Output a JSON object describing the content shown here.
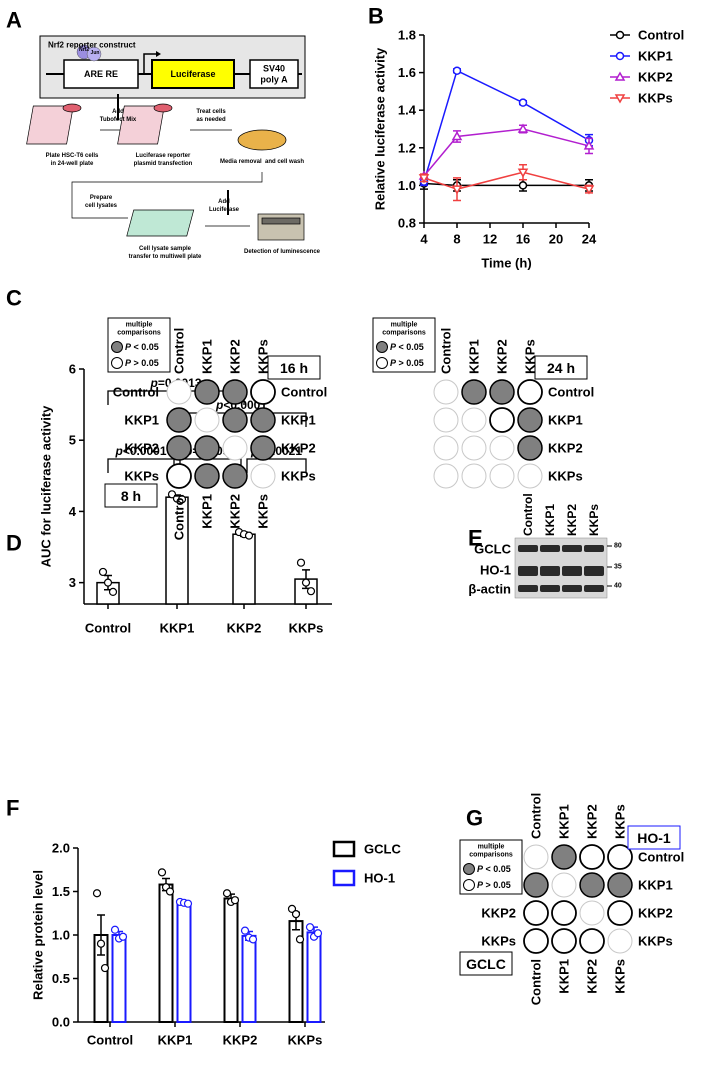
{
  "panel_labels": [
    "A",
    "B",
    "C",
    "D",
    "E",
    "F",
    "G"
  ],
  "construct": {
    "title": "Nrf2 reporter construct",
    "factors": [
      "Nrf2",
      "Jun"
    ],
    "elements": [
      [
        "ARE RE"
      ],
      [
        "Luciferase"
      ],
      [
        "SV40",
        "poly A"
      ]
    ]
  },
  "steps": [
    [
      "Plate HSC-T6 cells",
      "in 24-well plate"
    ],
    [
      "Add",
      "Tubofect Mix"
    ],
    [
      "Luciferase reporter",
      "plasmid transfection"
    ],
    [
      "Treat cells",
      "as needed"
    ],
    [
      "Media removal  and cell wash"
    ],
    [
      "Prepare",
      "cell lysates"
    ],
    [
      "Cell lysate sample",
      "transfer to multiwell plate"
    ],
    [
      "Add",
      "Luciferase"
    ],
    [
      "Detection of luminescence"
    ]
  ],
  "chart_data": [
    {
      "type": "line",
      "x": [
        4,
        8,
        16,
        24
      ],
      "xlim": [
        4,
        24
      ],
      "xticks": [
        4,
        8,
        12,
        16,
        20,
        24
      ],
      "ylim": [
        0.8,
        1.8
      ],
      "yticks": [
        0.8,
        {
          "value": 1,
          "label": "1.0"
        },
        1.2,
        1.4,
        1.6,
        1.8
      ],
      "xlabel": "Time (h)",
      "ylabel": "Relative luciferase activity",
      "legend": "outside-right",
      "series": [
        {
          "name": "Control",
          "color": "#000000",
          "marker": "circle",
          "values": [
            1.01,
            1.0,
            1.0,
            1.0
          ],
          "errors": [
            0.03,
            0.03,
            0.03,
            0.03
          ]
        },
        {
          "name": "KKP1",
          "color": "#1a1aff",
          "marker": "circle",
          "values": [
            1.02,
            1.61,
            1.44,
            1.24
          ],
          "errors": [
            0.02,
            0.01,
            0.01,
            0.03
          ]
        },
        {
          "name": "KKP2",
          "color": "#b21fcf",
          "marker": "triangle-up",
          "values": [
            1.05,
            1.26,
            1.3,
            1.21
          ],
          "errors": [
            0.01,
            0.03,
            0.02,
            0.04
          ]
        },
        {
          "name": "KKPs",
          "color": "#f04040",
          "marker": "triangle-down",
          "values": [
            1.04,
            0.98,
            1.07,
            0.98
          ],
          "errors": [
            0.02,
            0.06,
            0.04,
            0.02
          ]
        }
      ]
    },
    {
      "type": "bar",
      "categories": [
        "Control",
        "KKP1",
        "KKP2",
        "KKPs"
      ],
      "values": [
        3.0,
        4.2,
        3.68,
        3.05
      ],
      "errors": [
        0.1,
        0.03,
        0.03,
        0.13
      ],
      "points": [
        [
          3.15,
          3.0,
          2.87
        ],
        [
          4.24,
          4.18,
          4.17
        ],
        [
          3.71,
          3.68,
          3.66
        ],
        [
          3.28,
          3.0,
          2.88
        ]
      ],
      "color": "#000000",
      "ylim": [
        2.7,
        6
      ],
      "yticks": [
        3,
        4,
        5,
        6
      ],
      "ylabel": "AUC for luciferase activity",
      "annotations": [
        {
          "pair": [
            0,
            2
          ],
          "label": [
            "p",
            "=0.0013"
          ]
        },
        {
          "pair": [
            1,
            3
          ],
          "label": [
            "p",
            "<0.0001"
          ]
        },
        {
          "pair": [
            0,
            1
          ],
          "label": [
            "p",
            "<0.0001"
          ]
        },
        {
          "pair": [
            1,
            2
          ],
          "label": [
            "p",
            "=0.0099"
          ]
        },
        {
          "pair": [
            2,
            3
          ],
          "label": [
            "p",
            "=0.0021"
          ]
        }
      ]
    },
    {
      "type": "grouped_bar",
      "categories": [
        "Control",
        "KKP1",
        "KKP2",
        "KKPs"
      ],
      "ylim": [
        0,
        2
      ],
      "yticks": [
        {
          "value": 0,
          "label": "0.0"
        },
        0.5,
        {
          "value": 1,
          "label": "1.0"
        },
        1.5,
        {
          "value": 2,
          "label": "2.0"
        }
      ],
      "ylabel": "Relative protein level",
      "legend": "outside-right",
      "series": [
        {
          "name": "GCLC",
          "color": "#000000",
          "values": [
            1.0,
            1.58,
            1.42,
            1.16
          ],
          "errors": [
            0.23,
            0.07,
            0.05,
            0.1
          ],
          "points": [
            [
              1.48,
              0.9,
              0.62
            ],
            [
              1.72,
              1.55,
              1.5
            ],
            [
              1.48,
              1.38,
              1.4
            ],
            [
              1.3,
              1.24,
              0.95
            ]
          ]
        },
        {
          "name": "HO-1",
          "color": "#1a1aff",
          "values": [
            1.0,
            1.37,
            0.99,
            1.03
          ],
          "errors": [
            0.04,
            0.02,
            0.05,
            0.06
          ],
          "points": [
            [
              1.06,
              0.96,
              0.98
            ],
            [
              1.38,
              1.37,
              1.36
            ],
            [
              1.05,
              0.97,
              0.95
            ],
            [
              1.09,
              0.98,
              1.02
            ]
          ]
        }
      ]
    }
  ],
  "matrix_legend": {
    "title": [
      "multiple",
      "comparisons"
    ],
    "sig": [
      "P",
      " < 0.05"
    ],
    "ns": [
      "P",
      " > 0.05"
    ]
  },
  "matrices": [
    {
      "labels": [
        "Control",
        "KKP1",
        "KKP2",
        "KKPs"
      ],
      "upper": "16 h",
      "lower": "8 h",
      "sides": [
        "left",
        "right",
        "top",
        "bottom"
      ],
      "colors": {
        "left": [
          "#000000",
          "#1a1aff",
          "#ff00ff",
          "#ff1a1a"
        ],
        "right": [
          "#000000",
          "#1a1aff",
          "#ff00ff",
          "#ff1a1a"
        ],
        "top": [
          "#000000",
          "#1a1aff",
          "#ff00ff",
          "#ff1a1a"
        ],
        "bottom": [
          "#000000",
          "#1a1aff",
          "#ff00ff",
          "#ff1a1a"
        ]
      },
      "cells": [
        [
          "none",
          "sig",
          "sig",
          "ns"
        ],
        [
          "sig",
          "none",
          "sig",
          "sig"
        ],
        [
          "sig",
          "sig",
          "none",
          "sig"
        ],
        [
          "ns",
          "sig",
          "sig",
          "none"
        ]
      ]
    },
    {
      "labels": [
        "Control",
        "KKP1",
        "KKP2",
        "KKPs"
      ],
      "upper": "24 h",
      "sides": [
        "right",
        "top"
      ],
      "colors": {
        "right": [
          "#000000",
          "#1a1aff",
          "#ff00ff",
          "#ff1a1a"
        ],
        "top": [
          "#000000",
          "#1a1aff",
          "#ff00ff",
          "#ff1a1a"
        ]
      },
      "cells": [
        [
          "none",
          "sig",
          "sig",
          "ns"
        ],
        [
          "none",
          "none",
          "ns",
          "sig"
        ],
        [
          "none",
          "none",
          "none",
          "sig"
        ],
        [
          "none",
          "none",
          "none",
          "none"
        ]
      ]
    },
    {
      "labels": [
        "Control",
        "KKP1",
        "KKP2",
        "KKPs"
      ],
      "upper": "HO-1",
      "lower": "GCLC",
      "sides": [
        "left",
        "right",
        "top",
        "bottom"
      ],
      "colors": {
        "left": "#000000",
        "right": "#1a1aff",
        "top": "#1a1aff",
        "bottom": "#000000",
        "upper": "#1a1aff",
        "lower": "#000000"
      },
      "cells": [
        [
          "none",
          "sig",
          "ns",
          "ns"
        ],
        [
          "sig",
          "none",
          "sig",
          "sig"
        ],
        [
          "ns",
          "ns",
          "none",
          "ns"
        ],
        [
          "ns",
          "ns",
          "ns",
          "none"
        ]
      ]
    }
  ],
  "blot": {
    "lanes": [
      "Control",
      "KKP1",
      "KKP2",
      "KKPs"
    ],
    "proteins": [
      "GCLC",
      "HO-1",
      "β-actin"
    ],
    "markers": [
      "80",
      "35",
      "40"
    ]
  }
}
